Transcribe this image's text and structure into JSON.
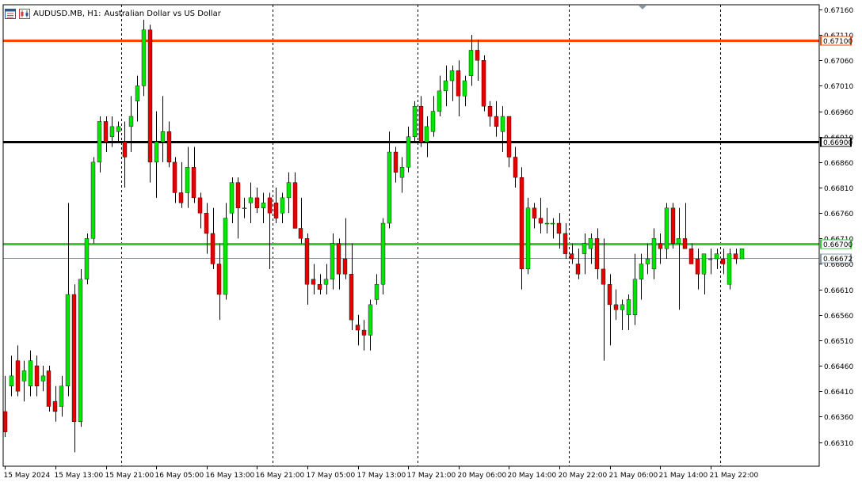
{
  "title": {
    "symbol": "AUDUSD.MB, H1:",
    "description": "Australian Dollar vs US Dollar"
  },
  "colors": {
    "bull": "#00e600",
    "bear": "#e60000",
    "wick_bull": "#000000",
    "wick_bear": "#000000",
    "grid": "#000000",
    "axis": "#000000",
    "level_orange": "#ff4500",
    "level_black": "#000000",
    "level_green": "#32cd32",
    "bid_line": "#8a99a8"
  },
  "chart_data": {
    "type": "candlestick",
    "timeframe": "H1",
    "ylim": [
      0.66285,
      0.67165
    ],
    "y_ticks": [
      "0.67160",
      "0.67110",
      "0.67060",
      "0.67010",
      "0.66960",
      "0.66910",
      "0.66860",
      "0.66810",
      "0.66760",
      "0.66710",
      "0.66660",
      "0.66610",
      "0.66560",
      "0.66510",
      "0.66460",
      "0.66410",
      "0.66360",
      "0.66310"
    ],
    "y_tick_values": [
      0.6716,
      0.6711,
      0.6706,
      0.6701,
      0.6696,
      0.6691,
      0.6686,
      0.6681,
      0.6676,
      0.6671,
      0.6666,
      0.6661,
      0.6656,
      0.6651,
      0.6646,
      0.6641,
      0.6636,
      0.6631
    ],
    "x_labels": [
      {
        "label": "15 May 2024",
        "bar": 0
      },
      {
        "label": "15 May 13:00",
        "bar": 8
      },
      {
        "label": "15 May 21:00",
        "bar": 16
      },
      {
        "label": "16 May 05:00",
        "bar": 24
      },
      {
        "label": "16 May 13:00",
        "bar": 32
      },
      {
        "label": "16 May 21:00",
        "bar": 40
      },
      {
        "label": "17 May 05:00",
        "bar": 48
      },
      {
        "label": "17 May 13:00",
        "bar": 56
      },
      {
        "label": "17 May 21:00",
        "bar": 64
      },
      {
        "label": "20 May 06:00",
        "bar": 72
      },
      {
        "label": "20 May 14:00",
        "bar": 80
      },
      {
        "label": "20 May 22:00",
        "bar": 88
      },
      {
        "label": "21 May 06:00",
        "bar": 96
      },
      {
        "label": "21 May 14:00",
        "bar": 104
      },
      {
        "label": "21 May 22:00",
        "bar": 112
      }
    ],
    "separators": [
      19,
      43,
      66,
      90,
      114
    ],
    "levels": [
      {
        "name": "resistance",
        "value": 0.671,
        "label": "0.67100",
        "color_key": "level_orange"
      },
      {
        "name": "pivot",
        "value": 0.669,
        "label": "0.66900",
        "color_key": "level_black"
      },
      {
        "name": "support",
        "value": 0.667,
        "label": "0.66700",
        "color_key": "level_green"
      },
      {
        "name": "bid",
        "value": 0.66672,
        "label": "0.66672",
        "color_key": "bid_line"
      }
    ],
    "candles": [
      [
        0.6637,
        0.6644,
        0.6632,
        0.6633
      ],
      [
        0.6642,
        0.6648,
        0.664,
        0.6644
      ],
      [
        0.6647,
        0.665,
        0.664,
        0.6641
      ],
      [
        0.6643,
        0.6647,
        0.6639,
        0.6645
      ],
      [
        0.6642,
        0.6649,
        0.664,
        0.6647
      ],
      [
        0.6646,
        0.6648,
        0.664,
        0.6642
      ],
      [
        0.6643,
        0.6646,
        0.6641,
        0.6644
      ],
      [
        0.6645,
        0.6646,
        0.6637,
        0.6638
      ],
      [
        0.6639,
        0.6642,
        0.6635,
        0.6637
      ],
      [
        0.6638,
        0.6644,
        0.6636,
        0.6642
      ],
      [
        0.6642,
        0.6678,
        0.664,
        0.666
      ],
      [
        0.666,
        0.6662,
        0.6629,
        0.6635
      ],
      [
        0.6635,
        0.6665,
        0.6634,
        0.6663
      ],
      [
        0.6663,
        0.6672,
        0.6662,
        0.6671
      ],
      [
        0.6671,
        0.6687,
        0.667,
        0.6686
      ],
      [
        0.6686,
        0.6695,
        0.6684,
        0.6694
      ],
      [
        0.6694,
        0.6695,
        0.6688,
        0.669
      ],
      [
        0.6691,
        0.6695,
        0.6689,
        0.6693
      ],
      [
        0.6692,
        0.6694,
        0.669,
        0.6693
      ],
      [
        0.669,
        0.6694,
        0.6681,
        0.6687
      ],
      [
        0.6693,
        0.6699,
        0.6688,
        0.6695
      ],
      [
        0.6698,
        0.6703,
        0.6694,
        0.6701
      ],
      [
        0.6701,
        0.6714,
        0.6699,
        0.6712
      ],
      [
        0.6712,
        0.6713,
        0.6682,
        0.6686
      ],
      [
        0.6686,
        0.6696,
        0.6679,
        0.669
      ],
      [
        0.669,
        0.6699,
        0.6686,
        0.6692
      ],
      [
        0.6692,
        0.6694,
        0.6685,
        0.6686
      ],
      [
        0.6686,
        0.6687,
        0.6678,
        0.668
      ],
      [
        0.668,
        0.6686,
        0.6677,
        0.6678
      ],
      [
        0.668,
        0.6689,
        0.6677,
        0.6685
      ],
      [
        0.6685,
        0.6689,
        0.6678,
        0.6679
      ],
      [
        0.6679,
        0.668,
        0.6673,
        0.6676
      ],
      [
        0.6676,
        0.6678,
        0.6668,
        0.6672
      ],
      [
        0.6672,
        0.6677,
        0.6665,
        0.6666
      ],
      [
        0.6666,
        0.667,
        0.6655,
        0.666
      ],
      [
        0.666,
        0.6678,
        0.6659,
        0.6675
      ],
      [
        0.6676,
        0.6683,
        0.6674,
        0.6682
      ],
      [
        0.6682,
        0.6683,
        0.6671,
        0.6677
      ],
      [
        0.6677,
        0.6679,
        0.6675,
        0.6677
      ],
      [
        0.6678,
        0.6682,
        0.6674,
        0.6679
      ],
      [
        0.6679,
        0.6681,
        0.6676,
        0.6677
      ],
      [
        0.6677,
        0.668,
        0.6674,
        0.6678
      ],
      [
        0.6679,
        0.668,
        0.6665,
        0.6676
      ],
      [
        0.6678,
        0.6681,
        0.6674,
        0.6675
      ],
      [
        0.6676,
        0.668,
        0.6674,
        0.6679
      ],
      [
        0.6679,
        0.6684,
        0.6676,
        0.6682
      ],
      [
        0.6682,
        0.6684,
        0.6673,
        0.6673
      ],
      [
        0.6673,
        0.6679,
        0.667,
        0.6671
      ],
      [
        0.6671,
        0.6672,
        0.6658,
        0.6662
      ],
      [
        0.6663,
        0.6666,
        0.666,
        0.6662
      ],
      [
        0.6662,
        0.6664,
        0.666,
        0.6661
      ],
      [
        0.6662,
        0.6666,
        0.666,
        0.6663
      ],
      [
        0.6663,
        0.6672,
        0.6661,
        0.667
      ],
      [
        0.667,
        0.6671,
        0.6661,
        0.6664
      ],
      [
        0.6667,
        0.6675,
        0.6663,
        0.6664
      ],
      [
        0.6664,
        0.667,
        0.6653,
        0.6655
      ],
      [
        0.6654,
        0.6656,
        0.665,
        0.6653
      ],
      [
        0.6653,
        0.6655,
        0.6649,
        0.6652
      ],
      [
        0.6652,
        0.6659,
        0.6649,
        0.6658
      ],
      [
        0.6659,
        0.6664,
        0.6658,
        0.6662
      ],
      [
        0.6662,
        0.6675,
        0.666,
        0.6674
      ],
      [
        0.6674,
        0.6692,
        0.6673,
        0.6688
      ],
      [
        0.6688,
        0.6689,
        0.6682,
        0.6684
      ],
      [
        0.6683,
        0.6687,
        0.668,
        0.6685
      ],
      [
        0.6685,
        0.6693,
        0.6684,
        0.6691
      ],
      [
        0.6691,
        0.6698,
        0.669,
        0.6697
      ],
      [
        0.6697,
        0.6699,
        0.6689,
        0.669
      ],
      [
        0.669,
        0.6695,
        0.6687,
        0.6693
      ],
      [
        0.6692,
        0.6699,
        0.6691,
        0.6696
      ],
      [
        0.6696,
        0.6703,
        0.6695,
        0.67
      ],
      [
        0.67,
        0.6705,
        0.6697,
        0.6702
      ],
      [
        0.6702,
        0.6705,
        0.6698,
        0.6704
      ],
      [
        0.6704,
        0.6706,
        0.6695,
        0.6699
      ],
      [
        0.6699,
        0.6703,
        0.6697,
        0.6702
      ],
      [
        0.6703,
        0.6711,
        0.6701,
        0.6708
      ],
      [
        0.6708,
        0.671,
        0.6702,
        0.6706
      ],
      [
        0.6706,
        0.6707,
        0.6696,
        0.6697
      ],
      [
        0.6697,
        0.6698,
        0.6693,
        0.6695
      ],
      [
        0.6695,
        0.6698,
        0.6691,
        0.6693
      ],
      [
        0.6692,
        0.6697,
        0.6688,
        0.6695
      ],
      [
        0.6695,
        0.6695,
        0.6685,
        0.6687
      ],
      [
        0.6687,
        0.6689,
        0.6681,
        0.6683
      ],
      [
        0.6683,
        0.6685,
        0.6661,
        0.6665
      ],
      [
        0.6665,
        0.6679,
        0.6664,
        0.6677
      ],
      [
        0.6677,
        0.6678,
        0.6673,
        0.6675
      ],
      [
        0.6675,
        0.6679,
        0.6672,
        0.6674
      ],
      [
        0.6674,
        0.6677,
        0.6672,
        0.6674
      ],
      [
        0.6674,
        0.6675,
        0.6671,
        0.6674
      ],
      [
        0.6674,
        0.6676,
        0.6669,
        0.6672
      ],
      [
        0.6672,
        0.6674,
        0.6667,
        0.6668
      ],
      [
        0.6668,
        0.667,
        0.6666,
        0.6667
      ],
      [
        0.6666,
        0.6669,
        0.6663,
        0.6664
      ],
      [
        0.6668,
        0.6672,
        0.6664,
        0.667
      ],
      [
        0.6669,
        0.6672,
        0.6666,
        0.6671
      ],
      [
        0.6671,
        0.6673,
        0.6663,
        0.6665
      ],
      [
        0.6665,
        0.6671,
        0.6647,
        0.6662
      ],
      [
        0.6662,
        0.6664,
        0.665,
        0.6658
      ],
      [
        0.6658,
        0.6661,
        0.6655,
        0.6657
      ],
      [
        0.6657,
        0.6659,
        0.6653,
        0.6658
      ],
      [
        0.6656,
        0.666,
        0.6653,
        0.6659
      ],
      [
        0.6656,
        0.6668,
        0.6654,
        0.6663
      ],
      [
        0.6663,
        0.6668,
        0.6659,
        0.6666
      ],
      [
        0.6666,
        0.667,
        0.6664,
        0.6667
      ],
      [
        0.6665,
        0.6673,
        0.6663,
        0.6671
      ],
      [
        0.667,
        0.6672,
        0.6666,
        0.6669
      ],
      [
        0.6669,
        0.6678,
        0.6667,
        0.6677
      ],
      [
        0.6677,
        0.6678,
        0.6669,
        0.667
      ],
      [
        0.667,
        0.6677,
        0.6657,
        0.6671
      ],
      [
        0.6671,
        0.6678,
        0.6669,
        0.6669
      ],
      [
        0.6669,
        0.667,
        0.6666,
        0.6666
      ],
      [
        0.6667,
        0.6669,
        0.6661,
        0.6664
      ],
      [
        0.6664,
        0.6668,
        0.666,
        0.6668
      ],
      [
        0.6667,
        0.6669,
        0.6664,
        0.6667
      ],
      [
        0.6667,
        0.6669,
        0.6665,
        0.6668
      ],
      [
        0.6667,
        0.6669,
        0.6664,
        0.6666
      ],
      [
        0.6662,
        0.6669,
        0.6661,
        0.6668
      ],
      [
        0.6668,
        0.6669,
        0.6666,
        0.6667
      ],
      [
        0.6667,
        0.6669,
        0.6667,
        0.6669
      ]
    ]
  }
}
